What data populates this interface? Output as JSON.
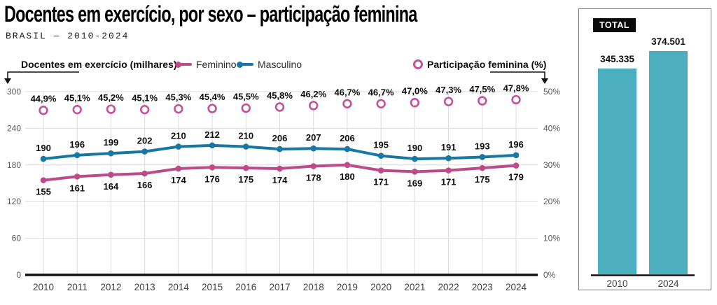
{
  "header": {
    "title": "Docentes em exercício, por sexo – participação feminina",
    "subtitle": "BRASIL — 2010-2024"
  },
  "colors": {
    "feminino": "#bc4b8a",
    "masculino": "#1878a2",
    "participacao": "#c2539a",
    "bar": "#4bafbf",
    "grid": "#dcdcdc",
    "axis_text": "#5a5a5a",
    "year_text": "#3f3f3f",
    "label_text": "#0d0d0d",
    "axis_line": "#111111"
  },
  "chart_data": [
    {
      "type": "line",
      "title": "Docentes em exercício, por sexo – participação feminina",
      "x": [
        "2010",
        "2011",
        "2012",
        "2013",
        "2014",
        "2015",
        "2016",
        "2017",
        "2018",
        "2019",
        "2020",
        "2021",
        "2022",
        "2023",
        "2024"
      ],
      "series": [
        {
          "name": "Feminino",
          "axis": "left",
          "style": "line",
          "label_position": "below",
          "color": "#bc4b8a",
          "values": [
            155,
            161,
            164,
            166,
            174,
            176,
            175,
            174,
            178,
            180,
            171,
            169,
            171,
            175,
            179
          ],
          "labels": [
            "155",
            "161",
            "164",
            "166",
            "174",
            "176",
            "175",
            "174",
            "178",
            "180",
            "171",
            "169",
            "171",
            "175",
            "179"
          ]
        },
        {
          "name": "Masculino",
          "axis": "left",
          "style": "line",
          "label_position": "above",
          "color": "#1878a2",
          "values": [
            190,
            196,
            199,
            202,
            210,
            212,
            210,
            206,
            207,
            206,
            195,
            190,
            191,
            193,
            196
          ],
          "labels": [
            "190",
            "196",
            "199",
            "202",
            "210",
            "212",
            "210",
            "206",
            "207",
            "206",
            "195",
            "190",
            "191",
            "193",
            "196"
          ]
        },
        {
          "name": "Participação feminina (%)",
          "axis": "right",
          "style": "open-circles",
          "label_position": "above",
          "color": "#c2539a",
          "values": [
            44.9,
            45.1,
            45.2,
            45.1,
            45.3,
            45.4,
            45.5,
            45.8,
            46.2,
            46.7,
            46.7,
            47.0,
            47.3,
            47.5,
            47.8
          ],
          "labels": [
            "44,9%",
            "45,1%",
            "45,2%",
            "45,1%",
            "45,3%",
            "45,4%",
            "45,5%",
            "45,8%",
            "46,2%",
            "46,7%",
            "46,7%",
            "47,0%",
            "47,3%",
            "47,5%",
            "47,8%"
          ]
        }
      ],
      "left_axis": {
        "label": "Docentes em exercício (milhares)",
        "range": [
          0,
          300
        ],
        "ticks": [
          {
            "value": 0,
            "label": "0"
          },
          {
            "value": 60,
            "label": "60"
          },
          {
            "value": 120,
            "label": "120"
          },
          {
            "value": 180,
            "label": "180"
          },
          {
            "value": 240,
            "label": "240"
          },
          {
            "value": 300,
            "label": "300"
          }
        ]
      },
      "right_axis": {
        "label": "Participação feminina (%)",
        "range": [
          0,
          50
        ],
        "ticks": [
          {
            "value": 0,
            "label": "0%"
          },
          {
            "value": 10,
            "label": "10%"
          },
          {
            "value": 20,
            "label": "20%"
          },
          {
            "value": 30,
            "label": "30%"
          },
          {
            "value": 40,
            "label": "40%"
          },
          {
            "value": 50,
            "label": "50%"
          }
        ]
      },
      "grid": true,
      "legend_position": "top"
    },
    {
      "type": "bar",
      "title": "TOTAL",
      "categories": [
        "2010",
        "2024"
      ],
      "values": [
        345335,
        374501
      ],
      "labels": [
        "345.335",
        "374.501"
      ],
      "color": "#4bafbf"
    }
  ]
}
